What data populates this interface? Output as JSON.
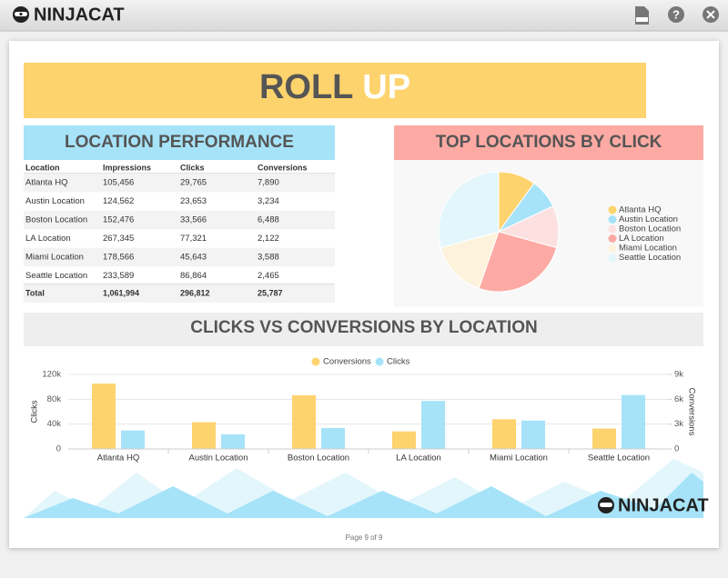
{
  "app": {
    "logo": "NINJACAT",
    "footer_logo": "NINJACAT",
    "page": "Page 9 of 9"
  },
  "report": {
    "title_words": [
      "ROLL",
      "UP"
    ],
    "table": {
      "title": "LOCATION PERFORMANCE",
      "header": [
        "Location",
        "Impressions",
        "Clicks",
        "Conversions"
      ],
      "rows": [
        [
          "Atlanta HQ",
          "105,456",
          "29,765",
          "7,890"
        ],
        [
          "Austin Location",
          "124,562",
          "23,653",
          "3,234"
        ],
        [
          "Boston Location",
          "152,476",
          "33,566",
          "6,488"
        ],
        [
          "LA Location",
          "267,345",
          "77,321",
          "2,122"
        ],
        [
          "Miami Location",
          "178,566",
          "45,643",
          "3,588"
        ],
        [
          "Seattle Location",
          "233,589",
          "86,864",
          "2,465"
        ]
      ],
      "total": [
        "Total",
        "1,061,994",
        "296,812",
        "25,787"
      ]
    }
  },
  "chart_data": [
    {
      "type": "pie",
      "title": "TOP LOCATIONS BY CLICK",
      "categories": [
        "Atlanta HQ",
        "Austin Location",
        "Boston Location",
        "LA Location",
        "Miami Location",
        "Seattle Location"
      ],
      "values": [
        29765,
        23653,
        33566,
        77321,
        45643,
        86864
      ],
      "colors": [
        "#fdd36e",
        "#a6e3f8",
        "#fde0e0",
        "#fcaaa3",
        "#fdf3dc",
        "#e3f6fc"
      ],
      "legend": "right"
    },
    {
      "type": "bar",
      "title": "CLICKS VS CONVERSIONS BY LOCATION",
      "categories": [
        "Atlanta HQ",
        "Austin Location",
        "Boston Location",
        "LA Location",
        "Miami Location",
        "Seattle Location"
      ],
      "series": [
        {
          "name": "Conversions",
          "color": "#fdd36e",
          "axis": "y2",
          "values": [
            7890,
            3234,
            6488,
            2122,
            3588,
            2465
          ]
        },
        {
          "name": "Clicks",
          "color": "#a6e3f8",
          "values": [
            29765,
            23653,
            33566,
            77321,
            45643,
            86864
          ]
        }
      ],
      "ylabel": "Clicks",
      "y2label": "Conversions",
      "ylim": [
        0,
        120000
      ],
      "yticks": [
        0,
        {
          "value": 40000,
          "label": "40k"
        },
        {
          "value": 80000,
          "label": "80k"
        },
        {
          "value": 120000,
          "label": "120k"
        }
      ],
      "y2lim": [
        0,
        9000
      ],
      "y2ticks": [
        0,
        {
          "value": 3000,
          "label": "3k"
        },
        {
          "value": 6000,
          "label": "6k"
        },
        {
          "value": 9000,
          "label": "9k"
        }
      ],
      "legend": "top",
      "grid": true
    }
  ]
}
